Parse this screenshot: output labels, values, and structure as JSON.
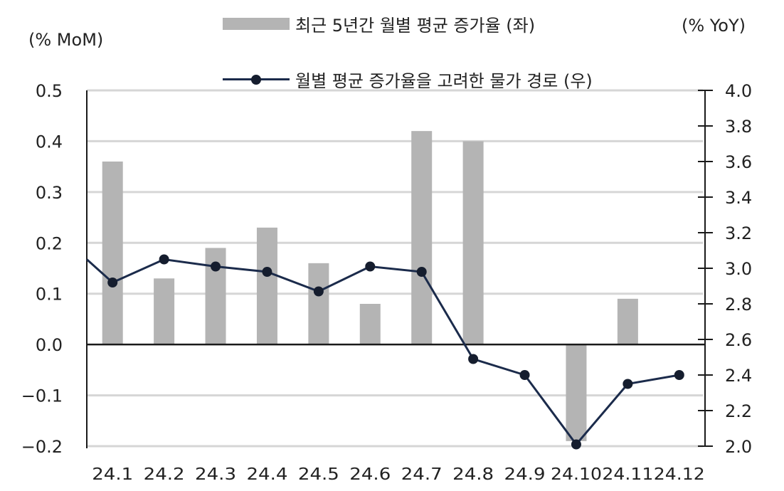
{
  "chart_data": {
    "type": "bar+line",
    "title": "",
    "categories": [
      "24.1",
      "24.2",
      "24.3",
      "24.4",
      "24.5",
      "24.6",
      "24.7",
      "24.8",
      "24.9",
      "24.10",
      "24.11",
      "24.12"
    ],
    "series": [
      {
        "name": "최근 5년간 월별 평균 증가율 (좌)",
        "type": "bar",
        "axis": "left",
        "color": "#b4b4b4",
        "values": [
          0.36,
          0.13,
          0.19,
          0.23,
          0.16,
          0.08,
          0.42,
          0.4,
          0.0,
          -0.19,
          0.09,
          0.0
        ]
      },
      {
        "name": "월별 평균 증가율을 고려한 물가 경로 (우)",
        "type": "line",
        "axis": "right",
        "color": "#1b2b4b",
        "marker": "circle",
        "start_value_offscreen": 3.05,
        "values": [
          2.92,
          3.05,
          3.01,
          2.98,
          2.87,
          3.01,
          2.98,
          2.49,
          2.4,
          2.01,
          2.35,
          2.4
        ]
      }
    ],
    "y_left": {
      "label": "(% MoM)",
      "ylim": [
        -0.2,
        0.5
      ],
      "ticks": [
        "0.5",
        "0.4",
        "0.3",
        "0.2",
        "0.1",
        "0.0",
        "-0.1",
        "-0.2"
      ],
      "tick_values": [
        0.5,
        0.4,
        0.3,
        0.2,
        0.1,
        0.0,
        -0.1,
        -0.2
      ]
    },
    "y_right": {
      "label": "(% YoY)",
      "ylim": [
        2.0,
        4.0
      ],
      "ticks": [
        "4.0",
        "3.8",
        "3.6",
        "3.4",
        "3.2",
        "3.0",
        "2.8",
        "2.6",
        "2.4",
        "2.2",
        "2.0"
      ],
      "tick_values": [
        4.0,
        3.8,
        3.6,
        3.4,
        3.2,
        3.0,
        2.8,
        2.6,
        2.4,
        2.2,
        2.0
      ]
    },
    "xlabel": "",
    "grid": true,
    "legend_position": "top-center"
  },
  "labels": {
    "left_axis_title": "(% MoM)",
    "right_axis_title": "(% YoY)",
    "legend_bar": "최근 5년간 월별 평균 증가율 (좌)",
    "legend_line": "월별 평균 증가율을 고려한 물가 경로 (우)"
  }
}
